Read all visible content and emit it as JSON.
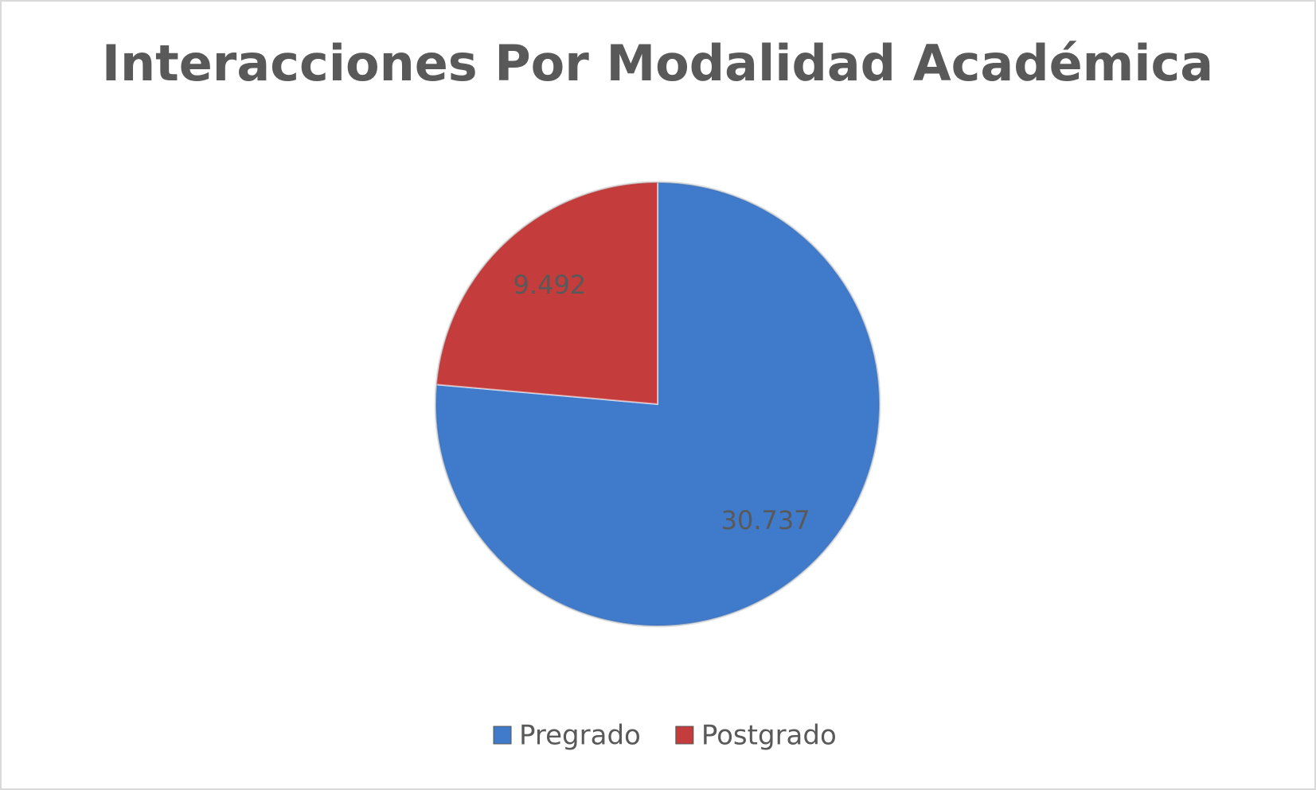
{
  "chart_data": {
    "type": "pie",
    "title": "Interacciones Por Modalidad Académica",
    "categories": [
      "Pregrado",
      "Postgrado"
    ],
    "values": [
      30737,
      9492
    ],
    "value_labels": [
      "30.737",
      "9.492"
    ],
    "colors": [
      "#3f7acb",
      "#c43c3b"
    ],
    "legend": "bottom"
  }
}
